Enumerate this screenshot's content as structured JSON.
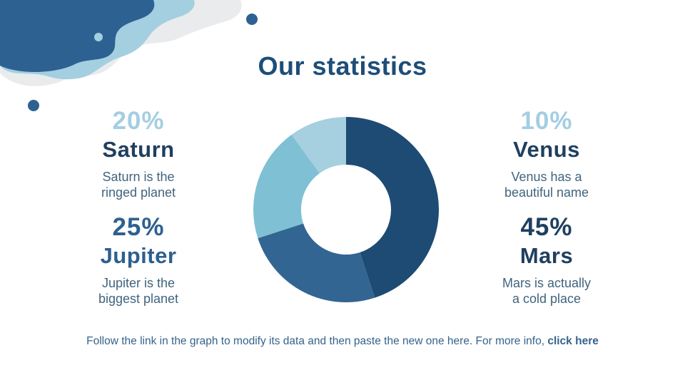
{
  "slide": {
    "title": "Our statistics",
    "title_color": "#1d4e79"
  },
  "stats": [
    {
      "id": "saturn",
      "percent": "20%",
      "name": "Saturn",
      "desc_line1": "Saturn is the",
      "desc_line2": "ringed planet",
      "percent_color": "#a4cee2",
      "name_color": "#203f60",
      "desc_color": "#40647e"
    },
    {
      "id": "jupiter",
      "percent": "25%",
      "name": "Jupiter",
      "desc_line1": "Jupiter is the",
      "desc_line2": "biggest planet",
      "percent_color": "#2d6090",
      "name_color": "#2d6090",
      "desc_color": "#40647e"
    },
    {
      "id": "venus",
      "percent": "10%",
      "name": "Venus",
      "desc_line1": "Venus has a",
      "desc_line2": "beautiful name",
      "percent_color": "#a4cee2",
      "name_color": "#203f60",
      "desc_color": "#40647e"
    },
    {
      "id": "mars",
      "percent": "45%",
      "name": "Mars",
      "desc_line1": "Mars is actually",
      "desc_line2": "a cold place",
      "percent_color": "#203f60",
      "name_color": "#203f60",
      "desc_color": "#40647e"
    }
  ],
  "footer": {
    "text": "Follow the link in the graph to modify its data and then paste the new one here. For more info, ",
    "link_label": "click here",
    "color": "#35638c"
  },
  "decor": {
    "blob_dark": "#2d6191",
    "blob_light": "#a3cfe0",
    "blob_gray": "#e9ebed",
    "dot_color": "#2d6191"
  },
  "chart_data": {
    "type": "pie",
    "subtype": "donut",
    "title": "",
    "categories": [
      "Mars",
      "Jupiter",
      "Saturn",
      "Venus"
    ],
    "values": [
      45,
      25,
      20,
      10
    ],
    "unit": "%",
    "colors": [
      "#1d4b73",
      "#336592",
      "#7fc0d4",
      "#a6cfe0"
    ],
    "start_angle_deg": 0,
    "direction": "clockwise",
    "inner_radius_ratio": 0.485,
    "legend": "none",
    "labels": "none"
  }
}
